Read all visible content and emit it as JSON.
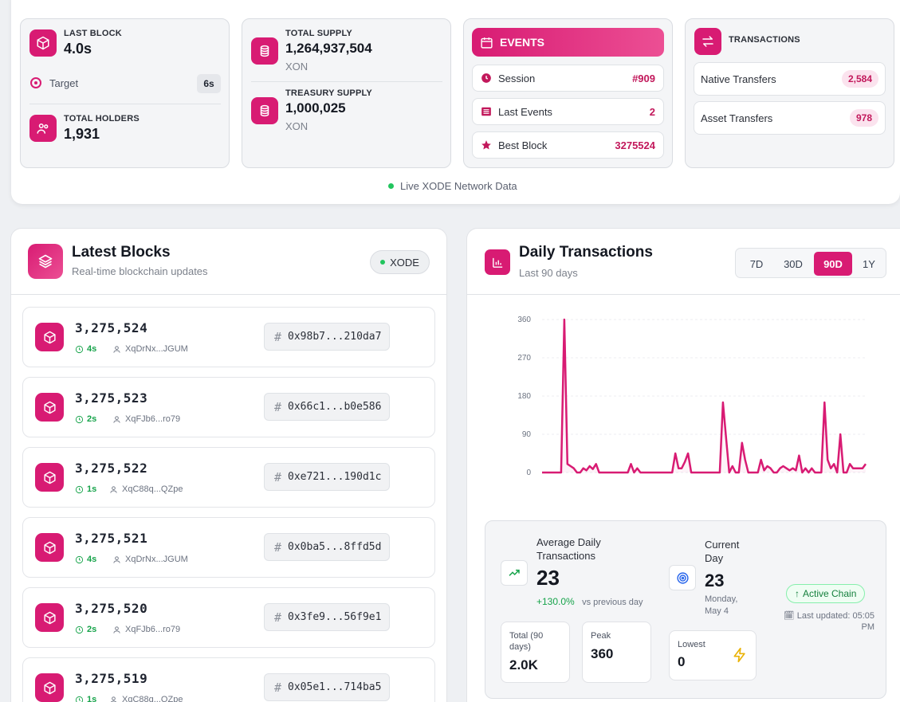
{
  "last_block": {
    "label": "LAST BLOCK",
    "value": "4.0s",
    "target_label": "Target",
    "target_value": "6s"
  },
  "holders": {
    "label": "TOTAL HOLDERS",
    "value": "1,931"
  },
  "supply": {
    "total_label": "TOTAL SUPPLY",
    "total_value": "1,264,937,504",
    "total_unit": "XON",
    "treasury_label": "TREASURY SUPPLY",
    "treasury_value": "1,000,025",
    "treasury_unit": "XON"
  },
  "events": {
    "title": "EVENTS",
    "rows": [
      {
        "label": "Session",
        "value": "#909",
        "icon": "clock-icon"
      },
      {
        "label": "Last Events",
        "value": "2",
        "icon": "list-icon"
      },
      {
        "label": "Best Block",
        "value": "3275524",
        "icon": "star-icon"
      }
    ]
  },
  "transactions": {
    "title": "TRANSACTIONS",
    "rows": [
      {
        "label": "Native Transfers",
        "value": "2,584"
      },
      {
        "label": "Asset Transfers",
        "value": "978"
      }
    ]
  },
  "live_status": "Live XODE Network Data",
  "latest_blocks": {
    "title": "Latest Blocks",
    "subtitle": "Real-time blockchain updates",
    "network_badge": "XODE",
    "items": [
      {
        "number": "3,275,524",
        "age": "4s",
        "author": "XqDrNx...JGUM",
        "hash": "0x98b7...210da7"
      },
      {
        "number": "3,275,523",
        "age": "2s",
        "author": "XqFJb6...ro79",
        "hash": "0x66c1...b0e586"
      },
      {
        "number": "3,275,522",
        "age": "1s",
        "author": "XqC88q...QZpe",
        "hash": "0xe721...190d1c"
      },
      {
        "number": "3,275,521",
        "age": "4s",
        "author": "XqDrNx...JGUM",
        "hash": "0x0ba5...8ffd5d"
      },
      {
        "number": "3,275,520",
        "age": "2s",
        "author": "XqFJb6...ro79",
        "hash": "0x3fe9...56f9e1"
      },
      {
        "number": "3,275,519",
        "age": "1s",
        "author": "XqC88q...QZpe",
        "hash": "0x05e1...714ba5"
      }
    ]
  },
  "daily": {
    "title": "Daily Transactions",
    "subtitle": "Last 90 days",
    "ranges": [
      "7D",
      "30D",
      "90D",
      "1Y"
    ],
    "active_range": "90D",
    "avg_label": "Average Daily Transactions",
    "avg_value": "23",
    "avg_change": "+130.0%",
    "avg_change_suffix": "vs previous day",
    "current_label": "Current Day",
    "current_value": "23",
    "current_date": "Monday, May 4",
    "active_chain": "Active Chain",
    "last_updated": "Last updated: 05:05 PM",
    "total_label": "Total (90 days)",
    "total_value": "2.0K",
    "peak_label": "Peak",
    "peak_value": "360",
    "lowest_label": "Lowest",
    "lowest_value": "0"
  },
  "chart_data": {
    "type": "line",
    "title": "",
    "xlabel": "",
    "ylabel": "",
    "ylim": [
      0,
      360
    ],
    "yticks": [
      0,
      90,
      180,
      270,
      360
    ],
    "grid": true,
    "color": "#d81b73",
    "series": [
      {
        "values": [
          0,
          0,
          0,
          0,
          0,
          0,
          0,
          360,
          20,
          15,
          10,
          0,
          0,
          10,
          5,
          15,
          8,
          20,
          0,
          0,
          0,
          0,
          0,
          0,
          0,
          0,
          0,
          0,
          20,
          0,
          10,
          0,
          0,
          0,
          0,
          0,
          0,
          0,
          0,
          0,
          0,
          0,
          45,
          10,
          10,
          25,
          45,
          0,
          0,
          0,
          0,
          0,
          0,
          0,
          0,
          0,
          0,
          165,
          80,
          0,
          15,
          0,
          0,
          70,
          30,
          0,
          0,
          0,
          0,
          30,
          5,
          15,
          10,
          0,
          0,
          10,
          15,
          10,
          5,
          10,
          5,
          40,
          0,
          10,
          0,
          10,
          0,
          0,
          0,
          165,
          30,
          10,
          20,
          0,
          90,
          0,
          0,
          20,
          10,
          10,
          10,
          10,
          20
        ]
      }
    ]
  }
}
